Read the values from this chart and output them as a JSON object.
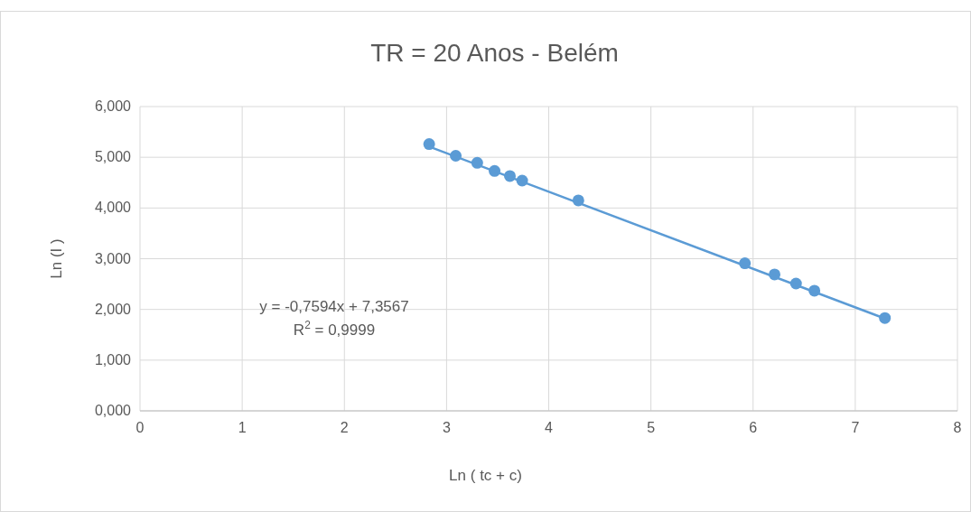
{
  "chart_data": {
    "type": "scatter",
    "title": "TR = 20 Anos - Belém",
    "xlabel": "Ln ( tc + c)",
    "ylabel": "Ln (I )",
    "xlim": [
      0,
      8
    ],
    "xticks": [
      0,
      1,
      2,
      3,
      4,
      5,
      6,
      7,
      8
    ],
    "ylim": [
      0,
      6
    ],
    "yticks": [
      {
        "value": 0,
        "label": "0,000"
      },
      {
        "value": 1,
        "label": "1,000"
      },
      {
        "value": 2,
        "label": "2,000"
      },
      {
        "value": 3,
        "label": "3,000"
      },
      {
        "value": 4,
        "label": "4,000"
      },
      {
        "value": 5,
        "label": "5,000"
      },
      {
        "value": 6,
        "label": "6,000"
      }
    ],
    "grid": true,
    "marker": "circle",
    "series": [
      {
        "color": "#5b9bd5",
        "x": [
          2.83,
          3.09,
          3.3,
          3.47,
          3.62,
          3.74,
          4.29,
          5.92,
          6.21,
          6.42,
          6.6,
          7.29
        ],
        "values": [
          5.26,
          5.03,
          4.89,
          4.73,
          4.63,
          4.54,
          4.15,
          2.91,
          2.69,
          2.51,
          2.37,
          1.83
        ]
      },
      {
        "type": "line",
        "marker": "none",
        "color": "#5b9bd5",
        "x": [
          2.83,
          7.29
        ],
        "values": [
          5.21,
          1.82
        ]
      }
    ],
    "annotations": [
      "y = -0,7594x + 7,3567",
      "R$^{2}$ = 0,9999"
    ]
  }
}
